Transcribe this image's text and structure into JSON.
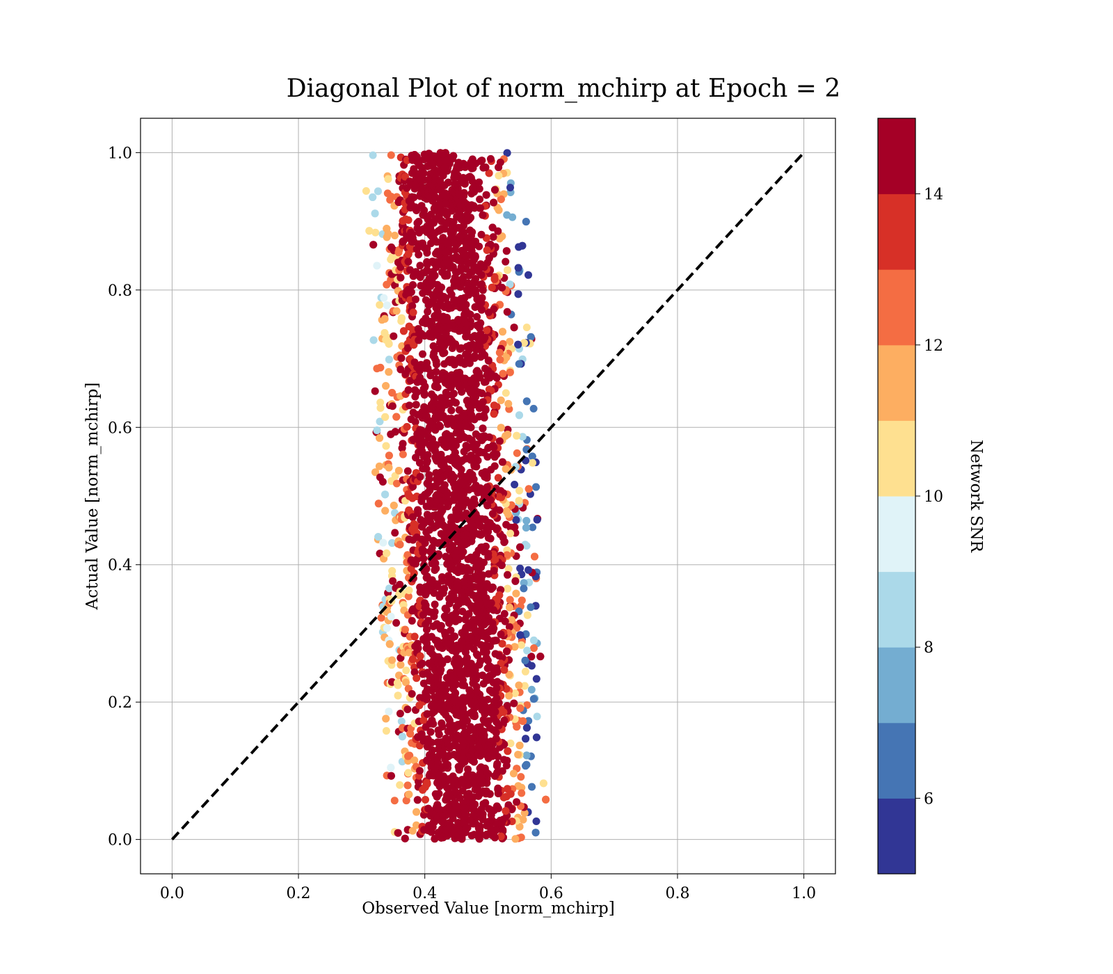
{
  "chart_data": {
    "type": "scatter",
    "title": "Diagonal Plot of norm_mchirp at Epoch = 2",
    "xlabel": "Observed Value [norm_mchirp]",
    "ylabel": "Actual Value [norm_mchirp]",
    "xlim": [
      -0.05,
      1.05
    ],
    "ylim": [
      -0.05,
      1.05
    ],
    "xticks": [
      "0.0",
      "0.2",
      "0.4",
      "0.6",
      "0.8",
      "1.0"
    ],
    "yticks": [
      "0.0",
      "0.2",
      "0.4",
      "0.6",
      "0.8",
      "1.0"
    ],
    "grid": true,
    "reference_line": {
      "x": [
        0.0,
        1.0
      ],
      "y": [
        0.0,
        1.0
      ],
      "style": "dashed",
      "color": "#000000"
    },
    "colorbar": {
      "label": "Network SNR",
      "range": [
        5,
        15
      ],
      "ticks": [
        "6",
        "8",
        "10",
        "12",
        "14"
      ],
      "colors": [
        "#313695",
        "#4575b4",
        "#74add1",
        "#abd9e9",
        "#e0f3f8",
        "#fee090",
        "#fdae61",
        "#f46d43",
        "#d73027",
        "#a50026"
      ]
    },
    "point_cloud": {
      "description_x_range": [
        0.31,
        0.61
      ],
      "y_range": [
        0.0,
        1.0
      ],
      "x_center_at_y0": 0.465,
      "x_center_at_y1": 0.43,
      "dominant_color": "#a50026"
    }
  }
}
